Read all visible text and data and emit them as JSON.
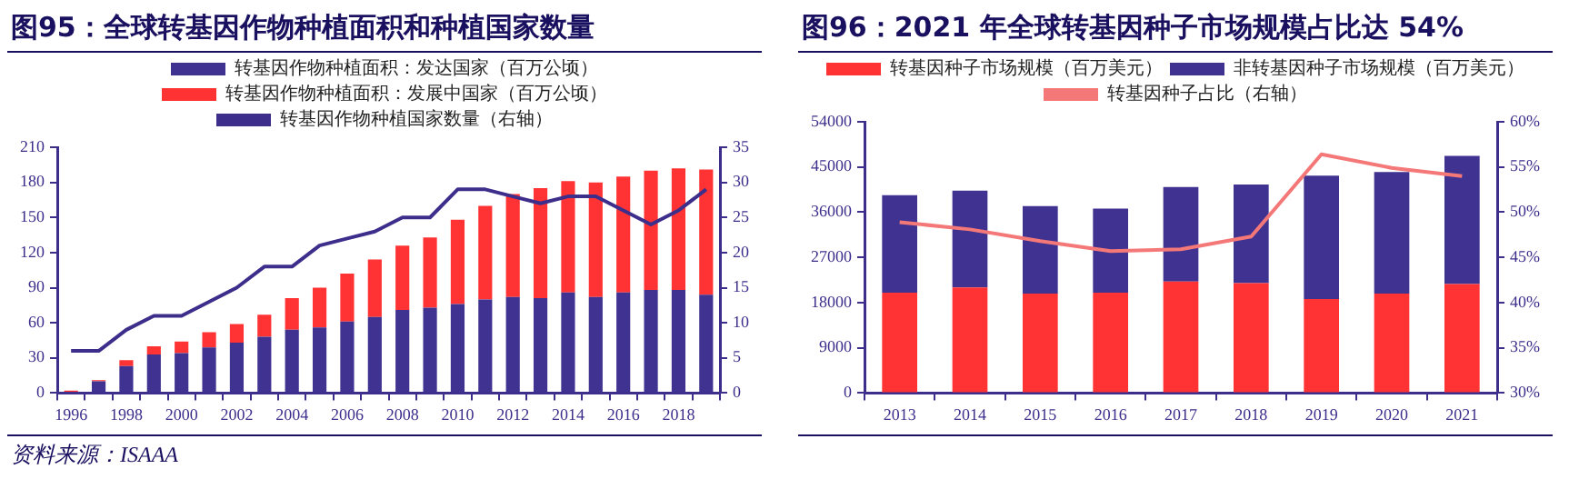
{
  "chart_data": [
    {
      "type": "bar",
      "title": "图95：全球转基因作物种植面积和种植国家数量",
      "stacked": true,
      "legend": "top",
      "categories": [
        "1996",
        null,
        "1998",
        null,
        "2000",
        null,
        "2002",
        null,
        "2004",
        null,
        "2006",
        null,
        "2008",
        null,
        "2010",
        null,
        "2012",
        null,
        "2014",
        null,
        "2016",
        null,
        "2018",
        null
      ],
      "series": [
        {
          "name": "转基因作物种植面积：发达国家（百万公顷）",
          "color": "#403291",
          "values": [
            1,
            10,
            23,
            33,
            34,
            39,
            43,
            48,
            54,
            56,
            61,
            65,
            71,
            73,
            76,
            80,
            82,
            81,
            86,
            82,
            86,
            88,
            88,
            84
          ]
        },
        {
          "name": "转基因作物种植面积：发展中国家（百万公顷）",
          "color": "#ff3333",
          "values": [
            1,
            1,
            5,
            7,
            10,
            13,
            16,
            19,
            27,
            34,
            41,
            49,
            55,
            60,
            72,
            80,
            88,
            94,
            95,
            98,
            99,
            102,
            104,
            107
          ]
        },
        {
          "name": "转基因作物种植国家数量（右轴）",
          "type": "line",
          "axis": "y2",
          "color": "#3d2e8c",
          "values": [
            6,
            6,
            9,
            11,
            11,
            13,
            15,
            18,
            18,
            21,
            22,
            23,
            25,
            25,
            29,
            29,
            28,
            27,
            28,
            28,
            26,
            24,
            26,
            29
          ]
        }
      ],
      "ylim": [
        0,
        210
      ],
      "yticks": [
        0,
        30,
        60,
        90,
        120,
        150,
        180,
        210
      ],
      "y2lim": [
        0,
        35
      ],
      "y2ticks": [
        0,
        5,
        10,
        15,
        20,
        25,
        30,
        35
      ],
      "annotations": [
        "资料来源：ISAAA"
      ]
    },
    {
      "type": "bar",
      "title": "图96：2021 年全球转基因种子市场规模占比达 54%",
      "stacked": true,
      "legend": "top",
      "categories": [
        "2013",
        "2014",
        "2015",
        "2016",
        "2017",
        "2018",
        "2019",
        "2020",
        "2021"
      ],
      "series": [
        {
          "name": "转基因种子市场规模（百万美元）",
          "color": "#ff3333",
          "values": [
            20000,
            21000,
            19800,
            20000,
            22200,
            21900,
            18700,
            19800,
            21700
          ]
        },
        {
          "name": "非转基因种子市场规模（百万美元）",
          "color": "#403291",
          "values": [
            19400,
            19300,
            17400,
            16700,
            18800,
            19600,
            24600,
            24200,
            25500
          ]
        },
        {
          "name": "转基因种子占比（右轴）",
          "type": "line",
          "axis": "y2",
          "color": "#f57878",
          "values": [
            48.9,
            48.1,
            46.8,
            45.7,
            45.9,
            47.3,
            56.4,
            54.9,
            54.0
          ]
        }
      ],
      "ylim": [
        0,
        54000
      ],
      "yticks": [
        0,
        9000,
        18000,
        27000,
        36000,
        45000,
        54000
      ],
      "y2lim": [
        30,
        60
      ],
      "y2ticks": [
        {
          "value": 30,
          "label": "30%"
        },
        {
          "value": 35,
          "label": "35%"
        },
        {
          "value": 40,
          "label": "40%"
        },
        {
          "value": 45,
          "label": "45%"
        },
        {
          "value": 50,
          "label": "50%"
        },
        {
          "value": 55,
          "label": "55%"
        },
        {
          "value": 60,
          "label": "60%"
        }
      ]
    }
  ]
}
